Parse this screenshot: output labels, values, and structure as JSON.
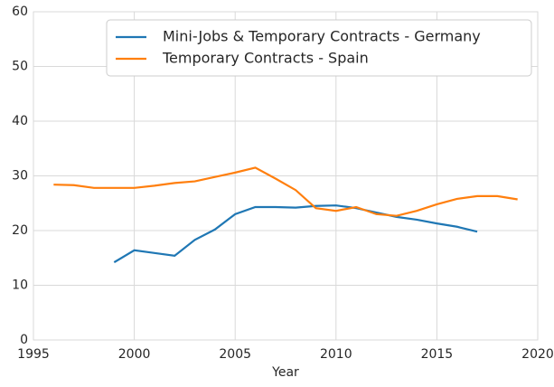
{
  "chart_data": {
    "type": "line",
    "xlabel": "Year",
    "series": [
      {
        "name": "Mini-Jobs & Temporary Contracts - Germany",
        "color": "#1f77b4",
        "x": [
          1999,
          2000,
          2001,
          2002,
          2003,
          2004,
          2005,
          2006,
          2007,
          2008,
          2009,
          2010,
          2011,
          2012,
          2013,
          2014,
          2015,
          2016,
          2017
        ],
        "values": [
          14.2,
          16.4,
          15.9,
          15.4,
          18.3,
          20.2,
          23.0,
          24.3,
          24.3,
          24.2,
          24.5,
          24.6,
          24.1,
          23.3,
          22.5,
          22.0,
          21.3,
          20.7,
          19.8
        ]
      },
      {
        "name": "Temporary Contracts - Spain",
        "color": "#ff7f0e",
        "x": [
          1996,
          1997,
          1998,
          1999,
          2000,
          2001,
          2002,
          2003,
          2004,
          2005,
          2006,
          2007,
          2008,
          2009,
          2010,
          2011,
          2012,
          2013,
          2014,
          2015,
          2016,
          2017,
          2018,
          2019
        ],
        "values": [
          28.4,
          28.3,
          27.8,
          27.8,
          27.8,
          28.2,
          28.7,
          29.0,
          29.8,
          30.6,
          31.5,
          29.5,
          27.4,
          24.1,
          23.6,
          24.3,
          23.0,
          22.7,
          23.6,
          24.8,
          25.8,
          26.3,
          26.3,
          25.7
        ]
      }
    ],
    "xlim": [
      1995,
      2020
    ],
    "xticks": [
      1995,
      2000,
      2005,
      2010,
      2015,
      2020
    ],
    "ylim": [
      0,
      60
    ],
    "yticks": [
      0,
      10,
      20,
      30,
      40,
      50,
      60
    ],
    "grid": true,
    "legend": "upper right"
  }
}
